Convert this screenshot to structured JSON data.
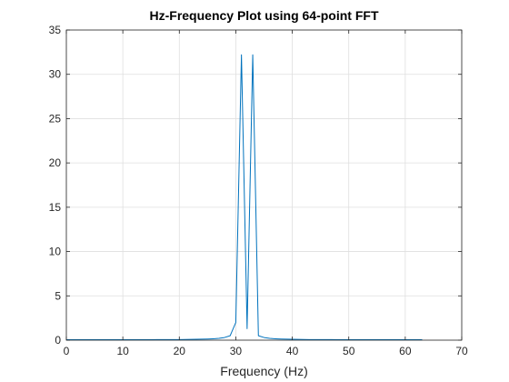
{
  "chart_data": {
    "type": "line",
    "title": "Hz-Frequency Plot using 64-point FFT",
    "xlabel": "Frequency (Hz)",
    "ylabel": "",
    "xlim": [
      0,
      70
    ],
    "ylim": [
      0,
      35
    ],
    "xticks": [
      0,
      10,
      20,
      30,
      40,
      50,
      60,
      70
    ],
    "yticks": [
      0,
      5,
      10,
      15,
      20,
      25,
      30,
      35
    ],
    "grid": true,
    "series_color": "#0072BD",
    "series": [
      {
        "x": [
          0,
          1,
          2,
          3,
          4,
          5,
          6,
          7,
          8,
          9,
          10,
          11,
          12,
          13,
          14,
          15,
          16,
          17,
          18,
          19,
          20,
          21,
          22,
          23,
          24,
          25,
          26,
          27,
          28,
          29,
          30,
          31,
          32,
          33,
          34,
          35,
          36,
          37,
          38,
          39,
          40,
          41,
          42,
          43,
          44,
          45,
          46,
          47,
          48,
          49,
          50,
          51,
          52,
          53,
          54,
          55,
          56,
          57,
          58,
          59,
          60,
          61,
          62,
          63
        ],
        "y": [
          0.05,
          0.05,
          0.05,
          0.05,
          0.05,
          0.05,
          0.05,
          0.05,
          0.05,
          0.05,
          0.05,
          0.05,
          0.05,
          0.05,
          0.05,
          0.05,
          0.06,
          0.06,
          0.06,
          0.07,
          0.07,
          0.08,
          0.09,
          0.1,
          0.11,
          0.13,
          0.16,
          0.2,
          0.3,
          0.5,
          2.0,
          32.2,
          1.3,
          32.2,
          0.5,
          0.3,
          0.2,
          0.16,
          0.13,
          0.11,
          0.1,
          0.09,
          0.08,
          0.07,
          0.07,
          0.06,
          0.06,
          0.06,
          0.05,
          0.05,
          0.05,
          0.05,
          0.05,
          0.05,
          0.05,
          0.05,
          0.05,
          0.05,
          0.05,
          0.05,
          0.05,
          0.05,
          0.05,
          0.05
        ]
      }
    ]
  }
}
